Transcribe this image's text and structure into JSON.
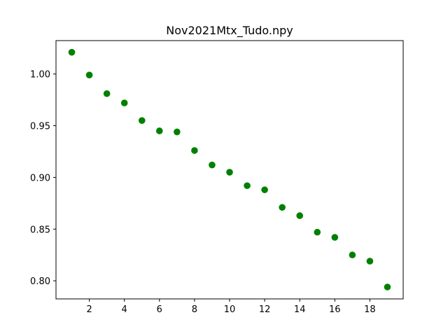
{
  "chart_data": {
    "type": "scatter",
    "title": "Nov2021Mtx_Tudo.npy",
    "xlabel": "",
    "ylabel": "",
    "x": [
      1,
      2,
      3,
      4,
      5,
      6,
      7,
      8,
      9,
      10,
      11,
      12,
      13,
      14,
      15,
      16,
      17,
      18,
      19
    ],
    "y": [
      1.021,
      0.999,
      0.981,
      0.972,
      0.955,
      0.945,
      0.944,
      0.926,
      0.912,
      0.905,
      0.892,
      0.888,
      0.871,
      0.863,
      0.847,
      0.842,
      0.825,
      0.819,
      0.794
    ],
    "xlim": [
      0.1,
      19.9
    ],
    "ylim": [
      0.7825,
      1.0323
    ],
    "xticks": [
      "2",
      "4",
      "6",
      "8",
      "10",
      "12",
      "14",
      "16",
      "18"
    ],
    "yticks": [
      "0.80",
      "0.85",
      "0.90",
      "0.95",
      "1.00"
    ],
    "grid": false,
    "marker_color": "#008000"
  }
}
